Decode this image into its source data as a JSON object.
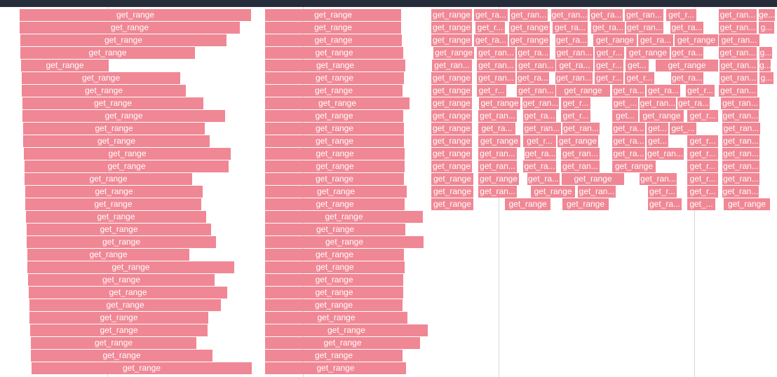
{
  "colors": {
    "slice": "#f08795",
    "topbar": "#262d3a",
    "gridline": "#d8d8d8",
    "label": "#ffffff"
  },
  "left_column": {
    "labels": [
      "get_range",
      "get_range",
      "get_range",
      "get_range",
      "get_range",
      "get_range",
      "get_range",
      "get_range",
      "get_range",
      "get_range",
      "get_range",
      "get_range",
      "get_range",
      "get_range",
      "get_range",
      "get_range",
      "get_range",
      "get_range",
      "get_range",
      "get_range",
      "get_range",
      "get_range",
      "get_range",
      "get_range",
      "get_range",
      "get_range",
      "get_range",
      "get_range",
      "get_range"
    ]
  },
  "middle_column": {
    "labels": [
      "get_range",
      "get_range",
      "get_range",
      "get_range",
      "get_range",
      "get_range",
      "get_range",
      "get_range",
      "get_range",
      "get_range",
      "get_range",
      "get_range",
      "get_range",
      "get_range",
      "get_range",
      "get_range",
      "get_range",
      "get_range",
      "get_range",
      "get_range",
      "get_range",
      "get_range",
      "get_range",
      "get_range",
      "get_range",
      "get_range",
      "get_range",
      "get_range",
      "get_range"
    ]
  },
  "right_column": {
    "rows": [
      [
        "get_range",
        "get_ra...",
        "get_ran...",
        "get_ran...",
        "get_ra...",
        "get_ran...",
        "get_r...",
        "get_ran...",
        "ge..."
      ],
      [
        "get_range",
        "get_r...",
        "get_range",
        "get_ra...",
        "get_ra...",
        "get_ran...",
        "get_ra...",
        "get_ran...",
        "g..."
      ],
      [
        "get_range",
        "get_ra...",
        "get_range",
        "get_ra...",
        "get_range",
        "get_ra...",
        "get_range",
        "get_ran..."
      ],
      [
        "get_range",
        "get_ran...",
        "get_ra...",
        "get_ran...",
        "get_r...",
        "get_range",
        "get_ra...",
        "get_ran...",
        "g..."
      ],
      [
        "get_ran...",
        "get_ran...",
        "get_ran...",
        "get_ra...",
        "get_r...",
        "get...",
        "get_range",
        "get_ran...",
        "g..."
      ],
      [
        "get_range",
        "get_ran...",
        "get_ra...",
        "get_ran...",
        "get_r...",
        "get_r...",
        "get_ra...",
        "get_ran...",
        "g..."
      ],
      [
        "get_range",
        "get_r...",
        "get_ran...",
        "get_range",
        "get_ra...",
        "get_ra...",
        "get_r...",
        "get_ran..."
      ],
      [
        "get_range",
        "get_range",
        "get_ran...",
        "get_r...",
        "get_...",
        "get_ran...",
        "get_ra...",
        "get_ran..."
      ],
      [
        "get_range",
        "get_ran...",
        "get_ra...",
        "get_r...",
        "get...",
        "get_range",
        "get_r...",
        "get_ran..."
      ],
      [
        "get_range",
        "get_ra...",
        "get_ran...",
        "get_ran...",
        "get_ra...",
        "get...",
        "get_...",
        "get_ran..."
      ],
      [
        "get_range",
        "get_range",
        "get_r...",
        "get_range",
        "get_ra...",
        "get...",
        "get_r...",
        "get_ran..."
      ],
      [
        "get_range",
        "get_ran...",
        "get_ra...",
        "get_ran...",
        "get_ra...",
        "get_ran...",
        "get_r...",
        "get_ran..."
      ],
      [
        "get_range",
        "get_ran...",
        "get_ra...",
        "get_ran...",
        "get_range",
        "get_r...",
        "get_ran..."
      ],
      [
        "get_range",
        "get_range",
        "get_ra...",
        "get_range",
        "get_ran...",
        "get_r...",
        "get_ran..."
      ],
      [
        "get_range",
        "get_ran...",
        "get_range",
        "get_ran...",
        "get_r...",
        "get_r...",
        "get_ran..."
      ],
      [
        "get_range",
        "get_range",
        "get_range",
        "get_ra...",
        "get_...",
        "get_range"
      ]
    ]
  }
}
